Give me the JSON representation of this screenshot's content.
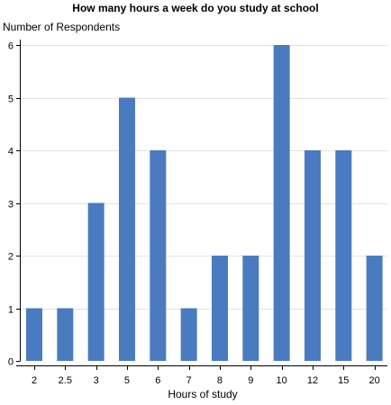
{
  "chart_data": {
    "type": "bar",
    "title": "How many hours a week do you study at school",
    "xlabel": "Hours of study",
    "ylabel": "Number of Respondents",
    "categories": [
      "2",
      "2.5",
      "3",
      "5",
      "6",
      "7",
      "8",
      "9",
      "10",
      "12",
      "15",
      "20"
    ],
    "values": [
      1,
      1,
      3,
      5,
      4,
      1,
      2,
      2,
      6,
      4,
      4,
      2
    ],
    "ylim": [
      0,
      6
    ],
    "yticks": [
      0,
      1,
      2,
      3,
      4,
      5,
      6
    ],
    "grid": true,
    "bar_color": "#4a7bc0",
    "grid_color": "#e3e3e3"
  }
}
